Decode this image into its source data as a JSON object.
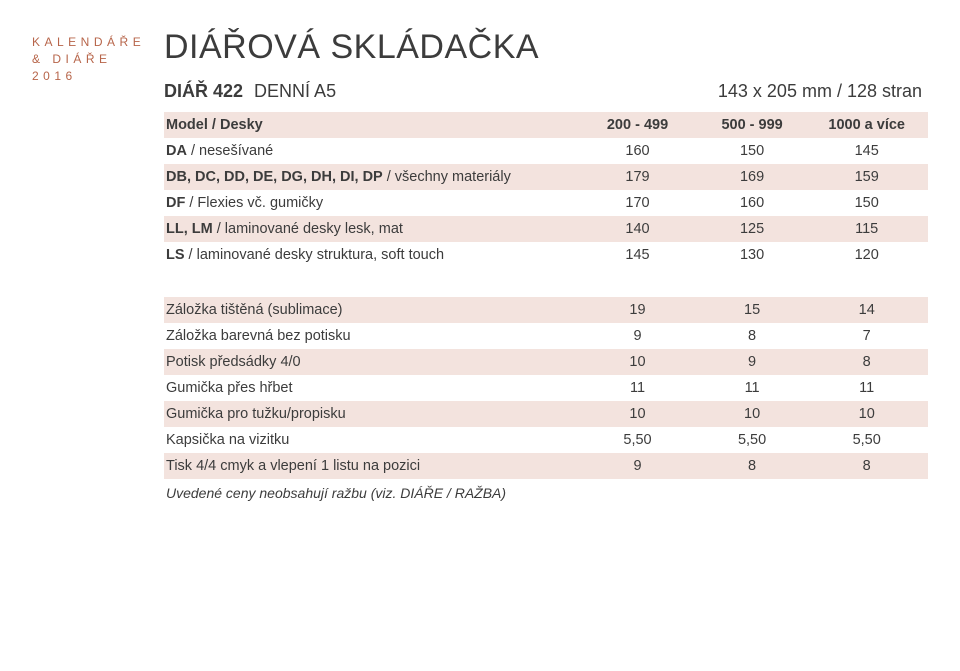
{
  "sidebar": {
    "line1": "KALENDÁŘE",
    "line2": "& DIÁŘE",
    "line3": "2016"
  },
  "colors": {
    "accent": "#b7654a",
    "stripe_odd": "#f3e3de",
    "stripe_even": "#ffffff",
    "text": "#3c3c3c",
    "background": "#ffffff"
  },
  "typography": {
    "title_fontsize": 34,
    "subtitle_fontsize": 18,
    "body_fontsize": 14.5,
    "sidebar_fontsize": 12,
    "footnote_fontsize": 14
  },
  "title": "DIÁŘOVÁ SKLÁDAČKA",
  "subtitle": {
    "code": "DIÁŘ 422",
    "name": "DENNÍ A5",
    "dims": "143 x 205 mm / 128 stran"
  },
  "pricing_table": {
    "type": "table",
    "header": {
      "label": "Model / Desky",
      "col1": "200 - 499",
      "col2": "500 - 999",
      "col3": "1000 a více"
    },
    "rows_top": [
      {
        "bold": "DA",
        "rest": " / nesešívané",
        "c1": "160",
        "c2": "150",
        "c3": "145"
      },
      {
        "bold": "DB, DC, DD, DE, DG, DH, DI, DP",
        "rest": " / všechny materiály",
        "c1": "179",
        "c2": "169",
        "c3": "159"
      },
      {
        "bold": "DF",
        "rest": " / Flexies vč. gumičky",
        "c1": "170",
        "c2": "160",
        "c3": "150"
      },
      {
        "bold": "LL, LM",
        "rest": " / laminované desky lesk, mat",
        "c1": "140",
        "c2": "125",
        "c3": "115"
      },
      {
        "bold": "LS",
        "rest": " / laminované desky struktura, soft touch",
        "c1": "145",
        "c2": "130",
        "c3": "120"
      }
    ],
    "rows_bottom": [
      {
        "label": "Záložka tištěná (sublimace)",
        "c1": "19",
        "c2": "15",
        "c3": "14"
      },
      {
        "label": "Záložka barevná bez potisku",
        "c1": "9",
        "c2": "8",
        "c3": "7"
      },
      {
        "label": "Potisk předsádky 4/0",
        "c1": "10",
        "c2": "9",
        "c3": "8"
      },
      {
        "label": "Gumička přes hřbet",
        "c1": "11",
        "c2": "11",
        "c3": "11"
      },
      {
        "label": "Gumička pro tužku/propisku",
        "c1": "10",
        "c2": "10",
        "c3": "10"
      },
      {
        "label": "Kapsička na vizitku",
        "c1": "5,50",
        "c2": "5,50",
        "c3": "5,50"
      },
      {
        "label": "Tisk 4/4 cmyk a vlepení 1 listu na pozici",
        "c1": "9",
        "c2": "8",
        "c3": "8"
      }
    ]
  },
  "footnote": "Uvedené ceny neobsahují ražbu (viz. DIÁŘE / RAŽBA)"
}
